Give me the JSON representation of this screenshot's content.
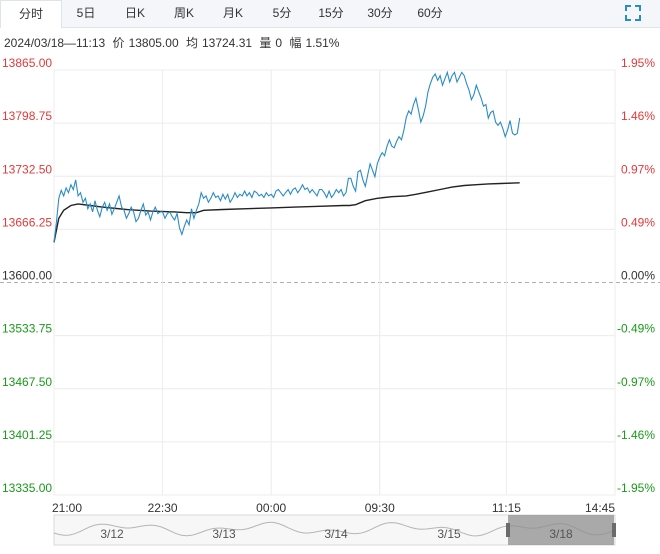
{
  "tabs": [
    {
      "label": "分时",
      "active": true
    },
    {
      "label": "5日",
      "active": false
    },
    {
      "label": "日K",
      "active": false
    },
    {
      "label": "周K",
      "active": false
    },
    {
      "label": "月K",
      "active": false
    },
    {
      "label": "5分",
      "active": false
    },
    {
      "label": "15分",
      "active": false
    },
    {
      "label": "30分",
      "active": false
    },
    {
      "label": "60分",
      "active": false
    }
  ],
  "info": {
    "datetime": "2024/03/18—11:13",
    "price_label": "价",
    "price": "13805.00",
    "avg_label": "均",
    "avg": "13724.31",
    "vol_label": "量",
    "vol": "0",
    "change_label": "幅",
    "change": "1.51%"
  },
  "colors": {
    "up": "#e23a3a",
    "down": "#1a9a1a",
    "neutral": "#333333",
    "price_line": "#2b8cc4",
    "avg_line": "#222222"
  },
  "chart_data": {
    "type": "line",
    "base_price": 13600.0,
    "y_ticks_left": [
      "13865.00",
      "13798.75",
      "13732.50",
      "13666.25",
      "13600.00",
      "13533.75",
      "13467.50",
      "13401.25",
      "13335.00"
    ],
    "y_ticks_right": [
      "1.95%",
      "1.46%",
      "0.97%",
      "0.49%",
      "0.00%",
      "-0.49%",
      "-0.97%",
      "-1.46%",
      "-1.95%"
    ],
    "ylim": [
      13335.0,
      13865.0
    ],
    "x_ticks": [
      "21:00",
      "22:30",
      "00:00",
      "09:30",
      "11:15",
      "14:45"
    ],
    "x_tick_index": [
      0,
      90,
      180,
      270,
      375,
      465
    ],
    "total_points": 466,
    "price_series": [
      [
        0,
        13650
      ],
      [
        2,
        13675
      ],
      [
        4,
        13705
      ],
      [
        6,
        13715
      ],
      [
        8,
        13708
      ],
      [
        10,
        13718
      ],
      [
        12,
        13712
      ],
      [
        14,
        13722
      ],
      [
        16,
        13716
      ],
      [
        18,
        13728
      ],
      [
        20,
        13708
      ],
      [
        22,
        13712
      ],
      [
        24,
        13700
      ],
      [
        26,
        13705
      ],
      [
        28,
        13692
      ],
      [
        30,
        13698
      ],
      [
        32,
        13688
      ],
      [
        34,
        13702
      ],
      [
        36,
        13690
      ],
      [
        38,
        13682
      ],
      [
        40,
        13694
      ],
      [
        42,
        13700
      ],
      [
        44,
        13690
      ],
      [
        46,
        13698
      ],
      [
        48,
        13685
      ],
      [
        50,
        13692
      ],
      [
        52,
        13700
      ],
      [
        54,
        13708
      ],
      [
        56,
        13694
      ],
      [
        58,
        13690
      ],
      [
        60,
        13680
      ],
      [
        62,
        13686
      ],
      [
        64,
        13694
      ],
      [
        66,
        13688
      ],
      [
        68,
        13676
      ],
      [
        70,
        13680
      ],
      [
        72,
        13690
      ],
      [
        74,
        13698
      ],
      [
        76,
        13684
      ],
      [
        78,
        13688
      ],
      [
        80,
        13678
      ],
      [
        82,
        13688
      ],
      [
        84,
        13694
      ],
      [
        86,
        13686
      ],
      [
        88,
        13688
      ],
      [
        90,
        13688
      ],
      [
        92,
        13680
      ],
      [
        94,
        13686
      ],
      [
        96,
        13688
      ],
      [
        98,
        13682
      ],
      [
        100,
        13678
      ],
      [
        102,
        13686
      ],
      [
        104,
        13668
      ],
      [
        106,
        13660
      ],
      [
        108,
        13670
      ],
      [
        110,
        13678
      ],
      [
        112,
        13672
      ],
      [
        114,
        13692
      ],
      [
        116,
        13680
      ],
      [
        118,
        13690
      ],
      [
        120,
        13698
      ],
      [
        122,
        13712
      ],
      [
        124,
        13705
      ],
      [
        126,
        13708
      ],
      [
        128,
        13700
      ],
      [
        130,
        13705
      ],
      [
        132,
        13712
      ],
      [
        134,
        13706
      ],
      [
        136,
        13708
      ],
      [
        138,
        13702
      ],
      [
        140,
        13710
      ],
      [
        142,
        13704
      ],
      [
        144,
        13710
      ],
      [
        146,
        13700
      ],
      [
        148,
        13705
      ],
      [
        150,
        13712
      ],
      [
        152,
        13706
      ],
      [
        154,
        13710
      ],
      [
        156,
        13708
      ],
      [
        158,
        13714
      ],
      [
        160,
        13708
      ],
      [
        162,
        13712
      ],
      [
        164,
        13706
      ],
      [
        166,
        13714
      ],
      [
        168,
        13712
      ],
      [
        170,
        13708
      ],
      [
        172,
        13710
      ],
      [
        174,
        13706
      ],
      [
        176,
        13712
      ],
      [
        178,
        13708
      ],
      [
        180,
        13710
      ],
      [
        182,
        13706
      ],
      [
        184,
        13714
      ],
      [
        186,
        13716
      ],
      [
        188,
        13712
      ],
      [
        190,
        13708
      ],
      [
        192,
        13712
      ],
      [
        194,
        13716
      ],
      [
        196,
        13710
      ],
      [
        198,
        13716
      ],
      [
        200,
        13718
      ],
      [
        202,
        13712
      ],
      [
        204,
        13716
      ],
      [
        206,
        13722
      ],
      [
        208,
        13716
      ],
      [
        210,
        13718
      ],
      [
        212,
        13712
      ],
      [
        214,
        13716
      ],
      [
        216,
        13712
      ],
      [
        218,
        13708
      ],
      [
        220,
        13716
      ],
      [
        222,
        13716
      ],
      [
        224,
        13712
      ],
      [
        226,
        13706
      ],
      [
        228,
        13714
      ],
      [
        230,
        13706
      ],
      [
        232,
        13710
      ],
      [
        234,
        13716
      ],
      [
        236,
        13712
      ],
      [
        238,
        13716
      ],
      [
        240,
        13708
      ],
      [
        242,
        13712
      ],
      [
        244,
        13730
      ],
      [
        246,
        13730
      ],
      [
        248,
        13720
      ],
      [
        250,
        13714
      ],
      [
        252,
        13738
      ],
      [
        254,
        13740
      ],
      [
        256,
        13728
      ],
      [
        258,
        13720
      ],
      [
        260,
        13734
      ],
      [
        262,
        13748
      ],
      [
        264,
        13740
      ],
      [
        266,
        13732
      ],
      [
        268,
        13748
      ],
      [
        270,
        13756
      ],
      [
        272,
        13762
      ],
      [
        274,
        13758
      ],
      [
        276,
        13770
      ],
      [
        278,
        13778
      ],
      [
        280,
        13770
      ],
      [
        282,
        13768
      ],
      [
        284,
        13776
      ],
      [
        286,
        13782
      ],
      [
        288,
        13778
      ],
      [
        290,
        13790
      ],
      [
        292,
        13806
      ],
      [
        294,
        13814
      ],
      [
        296,
        13810
      ],
      [
        298,
        13822
      ],
      [
        300,
        13830
      ],
      [
        302,
        13816
      ],
      [
        304,
        13800
      ],
      [
        306,
        13808
      ],
      [
        308,
        13820
      ],
      [
        310,
        13838
      ],
      [
        312,
        13848
      ],
      [
        314,
        13856
      ],
      [
        316,
        13860
      ],
      [
        318,
        13852
      ],
      [
        320,
        13858
      ],
      [
        322,
        13846
      ],
      [
        324,
        13854
      ],
      [
        326,
        13862
      ],
      [
        328,
        13850
      ],
      [
        330,
        13858
      ],
      [
        332,
        13862
      ],
      [
        334,
        13850
      ],
      [
        336,
        13856
      ],
      [
        338,
        13862
      ],
      [
        340,
        13858
      ],
      [
        342,
        13848
      ],
      [
        344,
        13840
      ],
      [
        346,
        13828
      ],
      [
        348,
        13834
      ],
      [
        350,
        13846
      ],
      [
        352,
        13838
      ],
      [
        354,
        13830
      ],
      [
        356,
        13820
      ],
      [
        358,
        13822
      ],
      [
        360,
        13805
      ],
      [
        362,
        13812
      ],
      [
        364,
        13814
      ],
      [
        366,
        13800
      ],
      [
        368,
        13796
      ],
      [
        370,
        13800
      ],
      [
        372,
        13792
      ],
      [
        374,
        13782
      ],
      [
        376,
        13790
      ],
      [
        378,
        13802
      ],
      [
        380,
        13786
      ],
      [
        382,
        13784
      ],
      [
        384,
        13786
      ],
      [
        386,
        13805
      ]
    ],
    "avg_series": [
      [
        0,
        13650
      ],
      [
        4,
        13680
      ],
      [
        8,
        13690
      ],
      [
        14,
        13696
      ],
      [
        20,
        13698
      ],
      [
        30,
        13696
      ],
      [
        40,
        13694
      ],
      [
        60,
        13691
      ],
      [
        80,
        13689
      ],
      [
        100,
        13688
      ],
      [
        110,
        13687
      ],
      [
        118,
        13687
      ],
      [
        124,
        13690
      ],
      [
        140,
        13691
      ],
      [
        160,
        13692
      ],
      [
        180,
        13693
      ],
      [
        200,
        13694
      ],
      [
        220,
        13695
      ],
      [
        240,
        13696
      ],
      [
        245,
        13696
      ],
      [
        250,
        13697
      ],
      [
        258,
        13702
      ],
      [
        268,
        13705
      ],
      [
        280,
        13707
      ],
      [
        292,
        13708
      ],
      [
        300,
        13710
      ],
      [
        310,
        13713
      ],
      [
        320,
        13716
      ],
      [
        330,
        13719
      ],
      [
        340,
        13721
      ],
      [
        350,
        13722
      ],
      [
        360,
        13723
      ],
      [
        370,
        13723.5
      ],
      [
        380,
        13724
      ],
      [
        386,
        13724.31
      ]
    ]
  },
  "navigator": {
    "dates": [
      "3/12",
      "3/13",
      "3/14",
      "3/15",
      "3/18"
    ]
  }
}
